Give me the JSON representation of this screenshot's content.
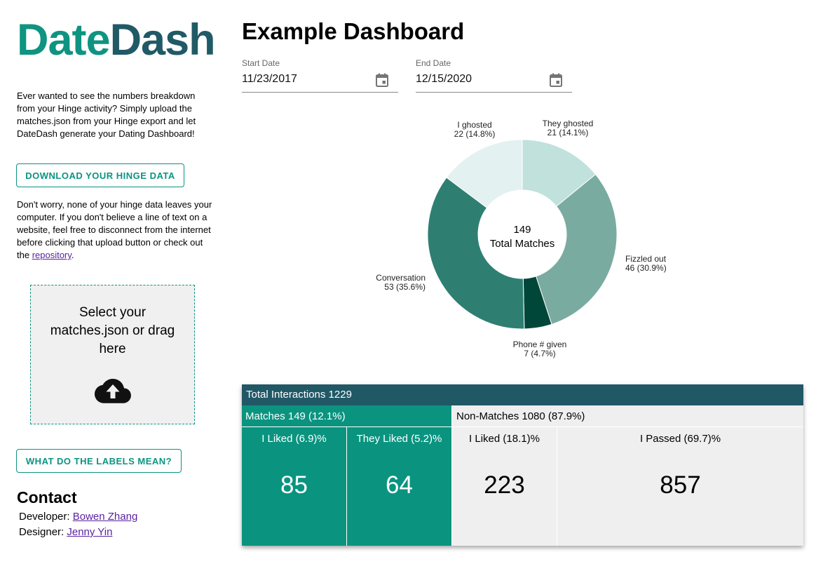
{
  "brand": {
    "part1": "Date",
    "part2": "Dash",
    "color1": "#0e9481",
    "color2": "#205a66"
  },
  "sidebar": {
    "intro": "Ever wanted to see the numbers breakdown from your Hinge activity? Simply upload the matches.json from your Hinge export and let DateDash generate your Dating Dashboard!",
    "download_button": "DOWNLOAD YOUR HINGE DATA",
    "privacy_text": "Don't worry, none of your hinge data leaves your computer. If you don't believe a line of text on a website, feel free to disconnect from the internet before clicking that upload button or check out the ",
    "repo_link": "repository",
    "privacy_end": ".",
    "dropzone_text": "Select your matches.json or drag here",
    "dropzone_icon": "cloud-upload-icon",
    "labels_button": "WHAT DO THE LABELS MEAN?",
    "contact_heading": "Contact",
    "developer_label": "Developer: ",
    "developer_name": "Bowen Zhang",
    "designer_label": "Designer: ",
    "designer_name": "Jenny Yin"
  },
  "main": {
    "title": "Example Dashboard",
    "start_date": {
      "label": "Start Date",
      "value": "11/23/2017",
      "icon": "calendar-icon"
    },
    "end_date": {
      "label": "End Date",
      "value": "12/15/2020",
      "icon": "calendar-icon"
    }
  },
  "chart_data": {
    "type": "pie",
    "center_value": "149",
    "center_label": "Total Matches",
    "slices": [
      {
        "label": "They ghosted",
        "value": 21,
        "display": "21 (14.1%)",
        "color": "#c0e1dc"
      },
      {
        "label": "Fizzled out",
        "value": 46,
        "display": "46 (30.9%)",
        "color": "#7aaba0"
      },
      {
        "label": "Phone # given",
        "value": 7,
        "display": "7 (4.7%)",
        "color": "#00473a"
      },
      {
        "label": "Conversation",
        "value": 53,
        "display": "53 (35.6%)",
        "color": "#2e7f72"
      },
      {
        "label": "I ghosted",
        "value": 22,
        "display": "22 (14.8%)",
        "color": "#e3f1f0"
      }
    ]
  },
  "table": {
    "total": "Total Interactions 1229",
    "matches": "Matches 149 (12.1%)",
    "non_matches": "Non-Matches 1080 (87.9%)",
    "cells": [
      {
        "title": "I Liked (6.9)%",
        "value": "85"
      },
      {
        "title": "They Liked (5.2)%",
        "value": "64"
      },
      {
        "title": "I Liked (18.1)%",
        "value": "223"
      },
      {
        "title": "I Passed (69.7)%",
        "value": "857"
      }
    ]
  }
}
